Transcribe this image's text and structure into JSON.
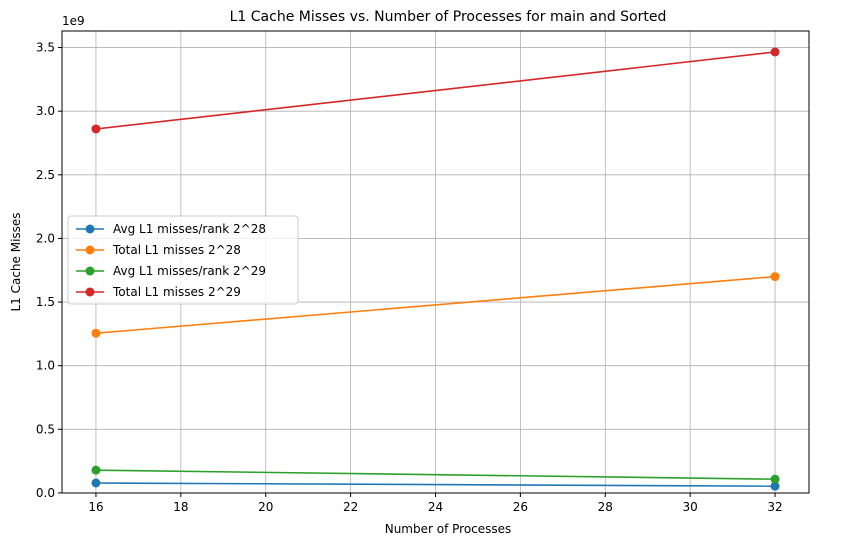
{
  "chart_data": {
    "type": "line",
    "title": "L1 Cache Misses vs. Number of Processes for main and Sorted",
    "xlabel": "Number of Processes",
    "ylabel": "L1 Cache Misses",
    "y_scale_label": "1e9",
    "xlim": [
      15.2,
      32.8
    ],
    "ylim": [
      -0.0006,
      3.63
    ],
    "x_ticks": [
      16,
      18,
      20,
      22,
      24,
      26,
      28,
      30,
      32
    ],
    "y_ticks": [
      0.0,
      0.5,
      1.0,
      1.5,
      2.0,
      2.5,
      3.0,
      3.5
    ],
    "y_tick_labels": [
      "0.0",
      "0.5",
      "1.0",
      "1.5",
      "2.0",
      "2.5",
      "3.0",
      "3.5"
    ],
    "grid": true,
    "legend_position": "center-left",
    "x": [
      16,
      32
    ],
    "series": [
      {
        "name": "Avg L1 misses/rank 2^28",
        "color": "#1f77b4",
        "values": [
          0.078,
          0.053
        ]
      },
      {
        "name": "Total L1 misses 2^28",
        "color": "#ff7f0e",
        "values": [
          1.255,
          1.7
        ]
      },
      {
        "name": "Avg L1 misses/rank 2^29",
        "color": "#2ca02c",
        "values": [
          0.179,
          0.108
        ]
      },
      {
        "name": "Total L1 misses 2^29",
        "color": "#d62728",
        "values": [
          2.86,
          3.465
        ]
      }
    ]
  }
}
